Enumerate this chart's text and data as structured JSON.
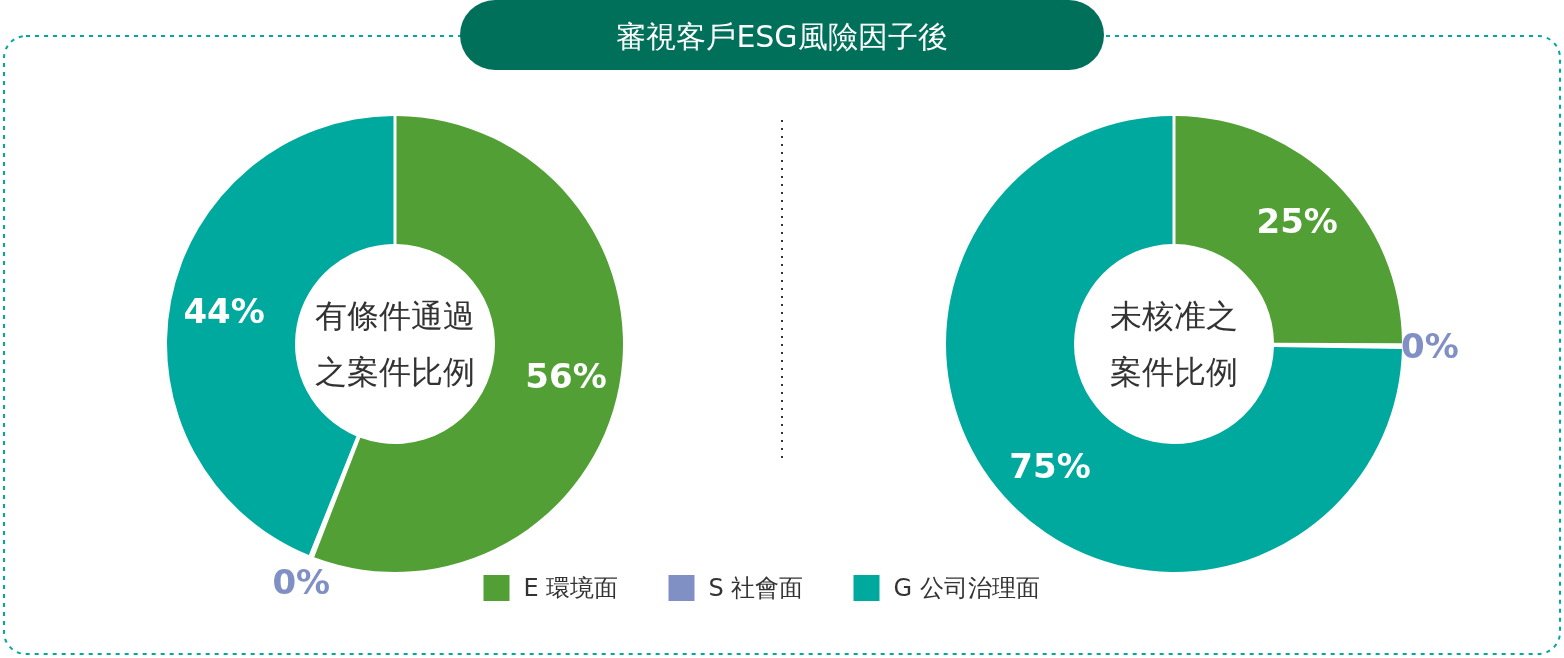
{
  "chart_data": [
    {
      "type": "donut",
      "title": "審視客戶ESG風險因子後",
      "subtitle": "有條件通過之案件比例",
      "categories": [
        "E 環境面",
        "S 社會面",
        "G 公司治理面"
      ],
      "values": [
        56,
        0,
        44
      ],
      "value_labels": [
        "56%",
        "0%",
        "44%"
      ],
      "colors": [
        "#52a035",
        "#8090c5",
        "#00a99d"
      ],
      "legend": "bottom"
    },
    {
      "type": "donut",
      "subtitle": "未核准之案件比例",
      "categories": [
        null,
        null,
        null
      ],
      "values": [
        25,
        0,
        75
      ],
      "value_labels": [
        "25%",
        "0%",
        "75%"
      ],
      "colors": [
        "#52a035",
        "#8090c5",
        "#00a99d"
      ]
    }
  ]
}
